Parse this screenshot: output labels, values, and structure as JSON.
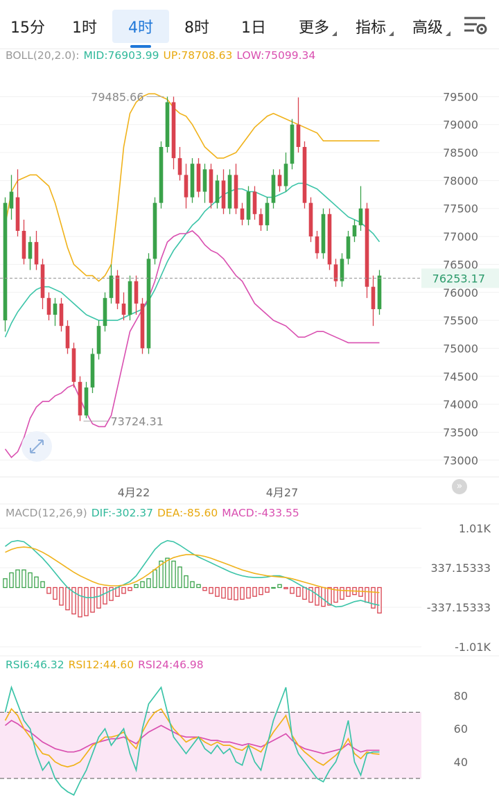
{
  "tabs": [
    {
      "label": "15分",
      "active": false
    },
    {
      "label": "1时",
      "active": false
    },
    {
      "label": "4时",
      "active": true
    },
    {
      "label": "8时",
      "active": false
    },
    {
      "label": "1日",
      "active": false
    },
    {
      "label": "更多",
      "active": false,
      "dropdown": true
    },
    {
      "label": "指标",
      "active": false,
      "dropdown": true
    },
    {
      "label": "高级",
      "active": false,
      "dropdown": true
    }
  ],
  "boll_legend": {
    "name": "BOLL(20,2.0):",
    "mid": "MID:76903.99",
    "up": "UP:78708.63",
    "low": "LOW:75099.34"
  },
  "macd_legend": {
    "name": "MACD(12,26,9)",
    "dif": "DIF:-302.37",
    "dea": "DEA:-85.60",
    "macd": "MACD:-433.55"
  },
  "rsi_legend": {
    "rsi6": "RSI6:46.32",
    "rsi12": "RSI12:44.60",
    "rsi24": "RSI24:46.98"
  },
  "colors": {
    "up": "#3aa24a",
    "down": "#d9424f",
    "mid": "#3bc4a8",
    "upper": "#f0b21a",
    "lower": "#d94fb0",
    "dif": "#3bc4a8",
    "dea": "#f0b21a",
    "rsi6": "#3bc4a8",
    "rsi12": "#f0b21a",
    "rsi24": "#d94fb0"
  },
  "current_price_label": "76253.17",
  "chart_data": [
    {
      "type": "candlestick",
      "title": "BOLL(20,2.0)",
      "ylim": [
        72700,
        80050
      ],
      "y_ticks": [
        "79500",
        "79000",
        "78500",
        "78000",
        "77500",
        "77000",
        "76500",
        "76000",
        "75500",
        "75000",
        "74500",
        "74000",
        "73500",
        "73000"
      ],
      "x_labels": [
        "4月22",
        "4月27"
      ],
      "annotations": [
        "79485.66",
        "73724.31"
      ],
      "current_price": 76253.17,
      "candles": [
        [
          75500,
          77600,
          77700,
          75300
        ],
        [
          77500,
          77800,
          78100,
          77300
        ],
        [
          77700,
          77100,
          78200,
          77000
        ],
        [
          77100,
          76600,
          77300,
          76500
        ],
        [
          76600,
          76900,
          77000,
          76400
        ],
        [
          76900,
          76500,
          77100,
          76400
        ],
        [
          76500,
          75900,
          76600,
          75700
        ],
        [
          75900,
          75600,
          76000,
          75500
        ],
        [
          75600,
          75800,
          75900,
          75400
        ],
        [
          75800,
          75400,
          75900,
          75300
        ],
        [
          75400,
          75000,
          75500,
          74900
        ],
        [
          75000,
          74400,
          75100,
          74300
        ],
        [
          74400,
          73800,
          74500,
          73700
        ],
        [
          73800,
          74300,
          74400,
          73750
        ],
        [
          74300,
          74900,
          75000,
          74200
        ],
        [
          74900,
          75400,
          75500,
          74800
        ],
        [
          75400,
          75900,
          76000,
          75300
        ],
        [
          75900,
          76300,
          76500,
          75800
        ],
        [
          76300,
          75800,
          76400,
          75700
        ],
        [
          75800,
          75600,
          76000,
          75500
        ],
        [
          75600,
          76200,
          76300,
          75500
        ],
        [
          76200,
          75800,
          76300,
          75600
        ],
        [
          75800,
          75000,
          75900,
          74900
        ],
        [
          75000,
          76600,
          76700,
          74900
        ],
        [
          76600,
          77600,
          77700,
          76500
        ],
        [
          77600,
          78600,
          78700,
          77500
        ],
        [
          78600,
          79400,
          79500,
          78500
        ],
        [
          79400,
          78400,
          79500,
          78200
        ],
        [
          78400,
          78100,
          78600,
          78000
        ],
        [
          78100,
          77700,
          78300,
          77500
        ],
        [
          77700,
          78300,
          78400,
          77600
        ],
        [
          78300,
          77800,
          78400,
          77700
        ],
        [
          77800,
          78200,
          78300,
          77600
        ],
        [
          78200,
          77600,
          78300,
          77500
        ],
        [
          77600,
          78000,
          78100,
          77500
        ],
        [
          78000,
          77500,
          78200,
          77400
        ],
        [
          77500,
          78100,
          78200,
          77400
        ],
        [
          78100,
          77500,
          78300,
          77400
        ],
        [
          77500,
          77300,
          77600,
          77200
        ],
        [
          77300,
          77800,
          77900,
          77200
        ],
        [
          77800,
          77400,
          77900,
          77300
        ],
        [
          77400,
          77200,
          77500,
          77100
        ],
        [
          77200,
          77600,
          77700,
          77100
        ],
        [
          77600,
          78100,
          78200,
          77500
        ],
        [
          78100,
          77900,
          78200,
          77800
        ],
        [
          77900,
          78300,
          78500,
          77800
        ],
        [
          78300,
          79000,
          79100,
          78200
        ],
        [
          79000,
          78600,
          79486,
          78500
        ],
        [
          78600,
          77600,
          78700,
          77500
        ],
        [
          77600,
          77000,
          77700,
          76900
        ],
        [
          77000,
          76700,
          77100,
          76600
        ],
        [
          76700,
          77400,
          77500,
          76600
        ],
        [
          77400,
          76500,
          77500,
          76400
        ],
        [
          76500,
          76200,
          76600,
          76100
        ],
        [
          76200,
          76600,
          76700,
          76100
        ],
        [
          76600,
          77000,
          77100,
          76500
        ],
        [
          77000,
          77200,
          77300,
          76900
        ],
        [
          77200,
          77500,
          77900,
          77100
        ],
        [
          77500,
          76100,
          77600,
          75900
        ],
        [
          76100,
          75700,
          76300,
          75400
        ],
        [
          75700,
          76300,
          76400,
          75600
        ]
      ],
      "series": [
        {
          "name": "MID",
          "values": [
            75200,
            75450,
            75650,
            75800,
            75950,
            76050,
            76100,
            76100,
            76050,
            76000,
            75900,
            75800,
            75700,
            75600,
            75550,
            75500,
            75500,
            75500,
            75500,
            75550,
            75600,
            75650,
            75700,
            75850,
            76050,
            76300,
            76550,
            76750,
            76900,
            77050,
            77200,
            77300,
            77450,
            77550,
            77650,
            77750,
            77800,
            77850,
            77850,
            77800,
            77800,
            77750,
            77700,
            77700,
            77750,
            77800,
            77900,
            77950,
            77950,
            77900,
            77850,
            77750,
            77650,
            77550,
            77450,
            77350,
            77300,
            77250,
            77150,
            77050,
            76904
          ]
        },
        {
          "name": "UP",
          "values": [
            77200,
            77800,
            78000,
            78050,
            78100,
            78100,
            78000,
            77900,
            77600,
            77200,
            76800,
            76500,
            76400,
            76300,
            76300,
            76200,
            76300,
            76500,
            77500,
            78600,
            79200,
            79400,
            79500,
            79550,
            79550,
            79500,
            79450,
            79300,
            79200,
            79150,
            79000,
            78800,
            78600,
            78500,
            78400,
            78400,
            78450,
            78500,
            78650,
            78800,
            78950,
            79050,
            79150,
            79200,
            79150,
            79100,
            79050,
            79000,
            78950,
            78900,
            78850,
            78709,
            78709,
            78709,
            78709,
            78709,
            78709,
            78709,
            78709,
            78709,
            78709
          ]
        },
        {
          "name": "LOW",
          "values": [
            73200,
            73050,
            73150,
            73400,
            73750,
            73950,
            74050,
            74050,
            74150,
            74200,
            74300,
            74350,
            74100,
            73850,
            73650,
            73600,
            73600,
            73800,
            74300,
            74800,
            75300,
            75500,
            75700,
            75900,
            76200,
            76600,
            76900,
            77000,
            77050,
            77050,
            77100,
            77000,
            76850,
            76750,
            76700,
            76600,
            76450,
            76300,
            76200,
            76000,
            75800,
            75700,
            75600,
            75500,
            75450,
            75400,
            75300,
            75200,
            75200,
            75250,
            75300,
            75300,
            75250,
            75200,
            75150,
            75100,
            75100,
            75100,
            75100,
            75100,
            75099
          ]
        }
      ]
    },
    {
      "type": "bar",
      "title": "MACD(12,26,9)",
      "ylim": [
        -1010,
        1010
      ],
      "y_ticks": [
        "1.01K",
        "337.15333",
        "-337.15333",
        "-1.01K"
      ],
      "series": [
        {
          "name": "MACD",
          "values": [
            150,
            250,
            300,
            300,
            250,
            180,
            100,
            -100,
            -200,
            -300,
            -380,
            -450,
            -500,
            -480,
            -420,
            -350,
            -280,
            -220,
            -150,
            -100,
            -50,
            50,
            100,
            150,
            300,
            450,
            500,
            450,
            350,
            200,
            100,
            50,
            -50,
            -100,
            -150,
            -180,
            -200,
            -210,
            -200,
            -180,
            -150,
            -120,
            -80,
            0,
            50,
            -20,
            -100,
            -150,
            -200,
            -250,
            -300,
            -320,
            -300,
            -250,
            -200,
            -150,
            -120,
            -150,
            -250,
            -350,
            -434
          ]
        },
        {
          "name": "DIF",
          "values": [
            700,
            780,
            800,
            780,
            700,
            600,
            500,
            380,
            250,
            120,
            0,
            -80,
            -140,
            -170,
            -170,
            -150,
            -100,
            -50,
            0,
            50,
            100,
            200,
            350,
            500,
            650,
            750,
            800,
            780,
            720,
            650,
            580,
            520,
            470,
            420,
            370,
            320,
            270,
            230,
            200,
            180,
            170,
            170,
            180,
            200,
            200,
            170,
            120,
            60,
            0,
            -50,
            -120,
            -200,
            -280,
            -330,
            -320,
            -280,
            -240,
            -220,
            -250,
            -280,
            -302
          ]
        },
        {
          "name": "DEA",
          "values": [
            600,
            650,
            680,
            690,
            680,
            650,
            600,
            540,
            470,
            400,
            330,
            260,
            200,
            150,
            100,
            60,
            40,
            30,
            30,
            40,
            60,
            100,
            160,
            230,
            310,
            390,
            460,
            510,
            540,
            560,
            560,
            550,
            530,
            500,
            460,
            420,
            380,
            340,
            300,
            270,
            240,
            220,
            200,
            190,
            180,
            170,
            150,
            120,
            90,
            60,
            30,
            0,
            -20,
            -40,
            -50,
            -55,
            -60,
            -65,
            -70,
            -78,
            -86
          ]
        }
      ]
    },
    {
      "type": "line",
      "title": "RSI",
      "ylim": [
        17,
        94
      ],
      "y_ticks": [
        "80",
        "60",
        "40"
      ],
      "reference_lines": [
        70,
        30
      ],
      "series": [
        {
          "name": "RSI6",
          "values": [
            70,
            85,
            75,
            65,
            60,
            45,
            35,
            40,
            30,
            25,
            22,
            20,
            28,
            35,
            45,
            55,
            60,
            50,
            55,
            60,
            45,
            35,
            60,
            75,
            80,
            85,
            70,
            55,
            50,
            45,
            50,
            55,
            48,
            45,
            50,
            45,
            48,
            40,
            38,
            50,
            40,
            35,
            50,
            65,
            75,
            85,
            55,
            45,
            40,
            35,
            30,
            28,
            35,
            40,
            50,
            65,
            40,
            32,
            45,
            46,
            46
          ]
        },
        {
          "name": "RSI12",
          "values": [
            65,
            72,
            68,
            60,
            55,
            50,
            45,
            44,
            40,
            38,
            37,
            38,
            40,
            45,
            50,
            52,
            55,
            55,
            56,
            58,
            52,
            48,
            58,
            65,
            70,
            72,
            66,
            60,
            56,
            52,
            54,
            55,
            52,
            50,
            52,
            50,
            50,
            48,
            47,
            50,
            48,
            46,
            52,
            58,
            63,
            68,
            56,
            50,
            46,
            43,
            40,
            38,
            41,
            44,
            48,
            54,
            45,
            42,
            46,
            45,
            44.6
          ]
        },
        {
          "name": "RSI24",
          "values": [
            62,
            65,
            63,
            60,
            58,
            55,
            52,
            50,
            48,
            47,
            46,
            46,
            47,
            49,
            51,
            52,
            53,
            54,
            54,
            55,
            53,
            51,
            55,
            58,
            60,
            62,
            60,
            58,
            56,
            55,
            55,
            55,
            54,
            53,
            53,
            52,
            52,
            51,
            50,
            51,
            50,
            49,
            51,
            53,
            55,
            57,
            53,
            50,
            48,
            47,
            46,
            45,
            46,
            47,
            48,
            51,
            48,
            46,
            47,
            47,
            47
          ]
        }
      ]
    }
  ]
}
